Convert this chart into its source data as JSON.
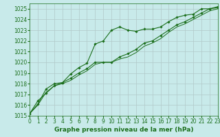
{
  "xlabel": "Graphe pression niveau de la mer (hPa)",
  "ylim": [
    1015,
    1025.5
  ],
  "xlim": [
    0,
    23
  ],
  "yticks": [
    1015,
    1016,
    1017,
    1018,
    1019,
    1020,
    1021,
    1022,
    1023,
    1024,
    1025
  ],
  "xticks": [
    0,
    1,
    2,
    3,
    4,
    5,
    6,
    7,
    8,
    9,
    10,
    11,
    12,
    13,
    14,
    15,
    16,
    17,
    18,
    19,
    20,
    21,
    22,
    23
  ],
  "background_color": "#c8eaea",
  "grid_color": "#b0c8c8",
  "line_color": "#1a6e1a",
  "series1_y": [
    1015.2,
    1016.4,
    1017.1,
    1017.8,
    1018.1,
    1018.9,
    1019.5,
    1019.9,
    1021.7,
    1022.0,
    1023.0,
    1023.3,
    1023.0,
    1022.9,
    1023.1,
    1023.1,
    1023.3,
    1023.8,
    1024.2,
    1024.4,
    1024.5,
    1025.0,
    1025.0,
    1025.1
  ],
  "series2_y": [
    1015.2,
    1016.1,
    1017.5,
    1018.0,
    1018.1,
    1018.5,
    1019.0,
    1019.4,
    1020.0,
    1020.0,
    1020.0,
    1020.5,
    1020.8,
    1021.2,
    1021.8,
    1022.0,
    1022.5,
    1023.0,
    1023.5,
    1023.8,
    1024.2,
    1024.6,
    1025.0,
    1025.2
  ],
  "series3_y": [
    1015.2,
    1016.0,
    1017.2,
    1017.8,
    1018.0,
    1018.3,
    1018.8,
    1019.2,
    1019.8,
    1020.0,
    1020.0,
    1020.3,
    1020.5,
    1020.9,
    1021.5,
    1021.8,
    1022.2,
    1022.8,
    1023.3,
    1023.6,
    1024.0,
    1024.4,
    1024.8,
    1025.0
  ],
  "xlabel_fontsize": 6.5,
  "tick_fontsize": 5.5
}
